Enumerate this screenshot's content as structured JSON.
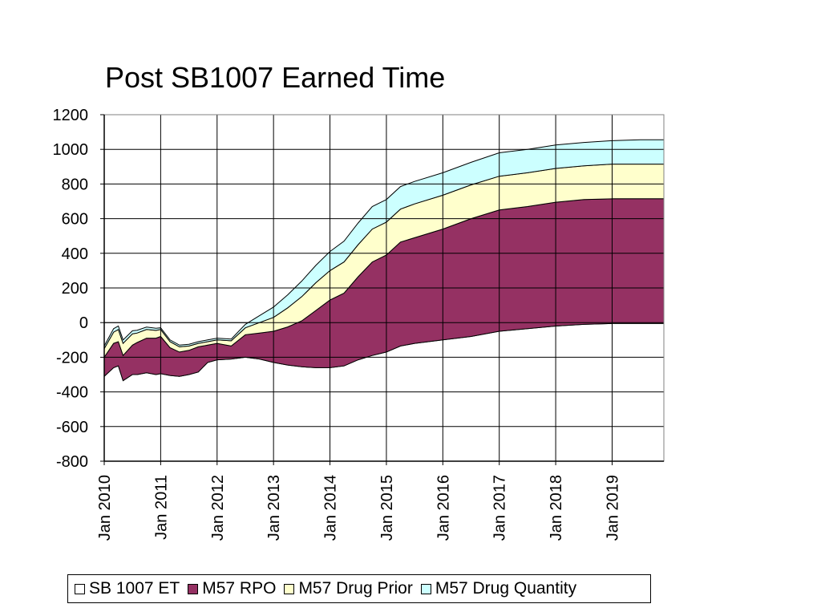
{
  "chart_data": {
    "type": "area",
    "stacked": true,
    "title": "Post SB1007 Earned Time",
    "xlabel": "",
    "ylabel": "",
    "ylim": [
      -800,
      1200
    ],
    "yticks": [
      1200,
      1000,
      800,
      600,
      400,
      200,
      0,
      -200,
      -400,
      -600,
      -800
    ],
    "xlim": [
      "Jan 2010",
      "Dec 2019"
    ],
    "x_tick_labels": [
      "Jan 2010",
      "Jan 2011",
      "Jan 2012",
      "Jan 2013",
      "Jan 2014",
      "Jan 2015",
      "Jan 2016",
      "Jan 2017",
      "Jan 2018",
      "Jan 2019"
    ],
    "grid": true,
    "legend_position": "bottom",
    "x": [
      "Jan 2010",
      "Mar 2010",
      "Apr 2010",
      "May 2010",
      "Jul 2010",
      "Aug 2010",
      "Oct 2010",
      "Dec 2010",
      "Jan 2011",
      "Mar 2011",
      "May 2011",
      "Jul 2011",
      "Sep 2011",
      "Nov 2011",
      "Jan 2012",
      "Apr 2012",
      "Jul 2012",
      "Oct 2012",
      "Jan 2013",
      "Apr 2013",
      "Jul 2013",
      "Oct 2013",
      "Jan 2014",
      "Apr 2014",
      "Jul 2014",
      "Oct 2014",
      "Jan 2015",
      "Apr 2015",
      "Jul 2015",
      "Jan 2016",
      "Jul 2016",
      "Jan 2017",
      "Jul 2017",
      "Jan 2018",
      "Jul 2018",
      "Jan 2019",
      "Jul 2019",
      "Dec 2019"
    ],
    "series": [
      {
        "name": "SB 1007 ET",
        "color": "#ffffff",
        "values": [
          -310,
          -260,
          -250,
          -335,
          -300,
          -300,
          -290,
          -300,
          -295,
          -305,
          -310,
          -300,
          -285,
          -230,
          -215,
          -210,
          -200,
          -210,
          -230,
          -245,
          -255,
          -260,
          -260,
          -250,
          -215,
          -190,
          -170,
          -135,
          -120,
          -100,
          -80,
          -50,
          -35,
          -20,
          -10,
          -5,
          -5,
          -5
        ]
      },
      {
        "name": "M57 RPO",
        "color": "#953163",
        "values": [
          110,
          140,
          140,
          145,
          170,
          185,
          200,
          210,
          215,
          160,
          140,
          140,
          145,
          100,
          95,
          75,
          130,
          150,
          180,
          220,
          265,
          330,
          390,
          420,
          480,
          540,
          560,
          600,
          610,
          640,
          680,
          700,
          705,
          715,
          720,
          720,
          720,
          720
        ]
      },
      {
        "name": "M57 Drug Prior",
        "color": "#ffffcc",
        "values": [
          50,
          65,
          70,
          70,
          65,
          55,
          50,
          45,
          40,
          35,
          30,
          25,
          20,
          20,
          20,
          30,
          40,
          60,
          80,
          110,
          140,
          160,
          170,
          180,
          185,
          190,
          190,
          190,
          195,
          195,
          195,
          195,
          195,
          195,
          195,
          200,
          200,
          200
        ]
      },
      {
        "name": "M57 Drug Quantity",
        "color": "#ccffff",
        "values": [
          15,
          20,
          20,
          20,
          18,
          16,
          14,
          12,
          10,
          10,
          10,
          10,
          10,
          10,
          10,
          10,
          20,
          40,
          60,
          75,
          90,
          100,
          110,
          120,
          125,
          130,
          130,
          130,
          130,
          130,
          130,
          135,
          135,
          135,
          135,
          135,
          140,
          140
        ]
      }
    ]
  }
}
